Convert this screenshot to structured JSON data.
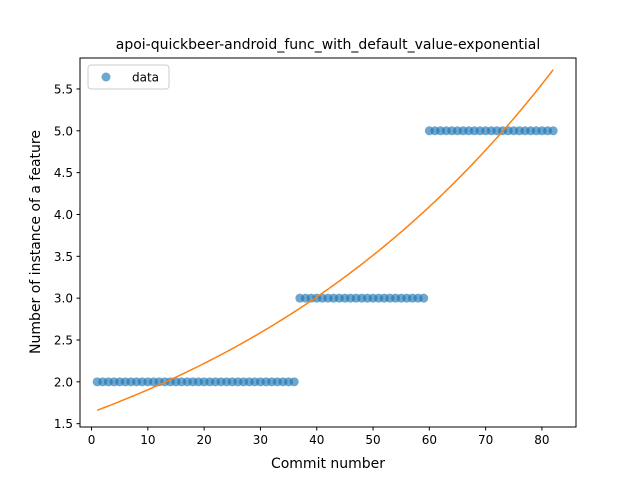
{
  "chart_data": {
    "type": "scatter",
    "title": "apoi-quickbeer-android_func_with_default_value-exponential",
    "xlabel": "Commit number",
    "ylabel": "Number of instance of a feature",
    "xlim": [
      -2.05,
      86.05
    ],
    "ylim": [
      1.46,
      5.87
    ],
    "xticks": [
      0,
      10,
      20,
      30,
      40,
      50,
      60,
      70,
      80
    ],
    "xtick_labels": [
      "0",
      "10",
      "20",
      "30",
      "40",
      "50",
      "60",
      "70",
      "80"
    ],
    "yticks": [
      1.5,
      2.0,
      2.5,
      3.0,
      3.5,
      4.0,
      4.5,
      5.0,
      5.5
    ],
    "ytick_labels": [
      "1.5",
      "2.0",
      "2.5",
      "3.0",
      "3.5",
      "4.0",
      "4.5",
      "5.0",
      "5.5"
    ],
    "legend": {
      "placement": "top-left",
      "entries": [
        "data"
      ]
    },
    "grid": false,
    "colors": {
      "scatter": "#1f77b4",
      "fit": "#ff7f0e"
    },
    "series": [
      {
        "name": "data",
        "kind": "scatter",
        "segments": [
          {
            "x_from": 1,
            "x_to": 36,
            "y": 2.0
          },
          {
            "x_from": 37,
            "x_to": 59,
            "y": 3.0
          },
          {
            "x_from": 60,
            "x_to": 82,
            "y": 5.0
          }
        ]
      },
      {
        "kind": "line",
        "model": "exponential",
        "x_from": 1,
        "x_to": 82,
        "y_start": 1.66,
        "y_end": 5.73
      }
    ]
  }
}
